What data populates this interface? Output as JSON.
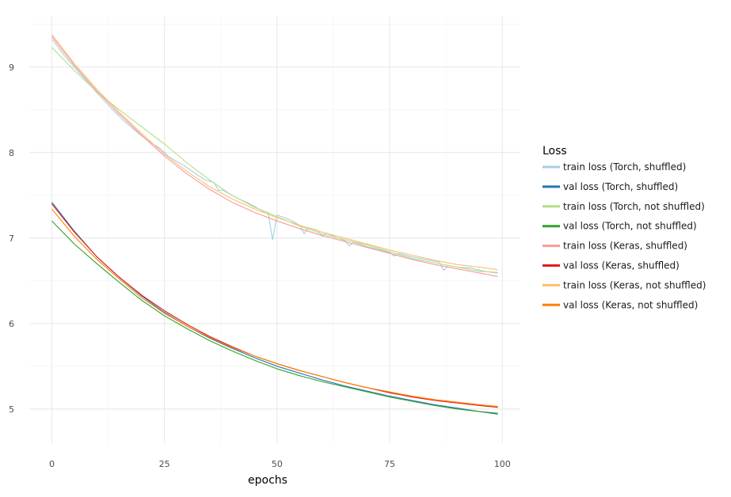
{
  "chart_data": {
    "type": "line",
    "title": "",
    "xlabel": "epochs",
    "ylabel": "",
    "xlim": [
      -5,
      104
    ],
    "ylim": [
      4.6,
      9.6
    ],
    "x_ticks": [
      0,
      25,
      50,
      75,
      100
    ],
    "y_ticks": [
      5,
      6,
      7,
      8,
      9
    ],
    "x_tick_labels": [
      "0",
      "25",
      "50",
      "75",
      "100"
    ],
    "y_tick_labels": [
      "5",
      "6",
      "7",
      "8",
      "9"
    ],
    "grid": true,
    "legend": {
      "title": "Loss",
      "placement": "right"
    },
    "x_range": [
      0,
      99
    ],
    "series": [
      {
        "name": "train loss (Torch, shuffled)",
        "color": "#a6cee3",
        "points": [
          [
            0,
            9.33
          ],
          [
            3,
            9.12
          ],
          [
            5,
            9.0
          ],
          [
            8,
            8.82
          ],
          [
            10,
            8.7
          ],
          [
            13,
            8.53
          ],
          [
            16,
            8.37
          ],
          [
            18,
            8.28
          ],
          [
            21,
            8.15
          ],
          [
            24,
            8.05
          ],
          [
            26,
            7.95
          ],
          [
            29,
            7.86
          ],
          [
            32,
            7.75
          ],
          [
            34,
            7.68
          ],
          [
            36,
            7.65
          ],
          [
            37,
            7.56
          ],
          [
            38,
            7.56
          ],
          [
            41,
            7.47
          ],
          [
            44,
            7.4
          ],
          [
            47,
            7.31
          ],
          [
            48,
            7.3
          ],
          [
            49,
            6.98
          ],
          [
            50,
            7.27
          ],
          [
            53,
            7.21
          ],
          [
            55,
            7.15
          ],
          [
            56,
            7.05
          ],
          [
            57,
            7.12
          ],
          [
            59,
            7.09
          ],
          [
            60,
            7.02
          ],
          [
            61,
            7.06
          ],
          [
            63,
            7.01
          ],
          [
            65,
            6.97
          ],
          [
            66,
            6.91
          ],
          [
            67,
            6.95
          ],
          [
            70,
            6.9
          ],
          [
            73,
            6.86
          ],
          [
            75,
            6.83
          ],
          [
            76,
            6.79
          ],
          [
            77,
            6.82
          ],
          [
            80,
            6.78
          ],
          [
            83,
            6.75
          ],
          [
            86,
            6.72
          ],
          [
            87,
            6.62
          ],
          [
            88,
            6.68
          ],
          [
            90,
            6.66
          ],
          [
            93,
            6.65
          ],
          [
            96,
            6.61
          ],
          [
            99,
            6.59
          ]
        ]
      },
      {
        "name": "val loss (Torch, shuffled)",
        "color": "#1f78b4",
        "points": [
          [
            0,
            7.42
          ],
          [
            5,
            7.08
          ],
          [
            10,
            6.78
          ],
          [
            15,
            6.54
          ],
          [
            20,
            6.32
          ],
          [
            25,
            6.13
          ],
          [
            30,
            5.97
          ],
          [
            35,
            5.83
          ],
          [
            40,
            5.71
          ],
          [
            45,
            5.6
          ],
          [
            50,
            5.5
          ],
          [
            55,
            5.42
          ],
          [
            60,
            5.34
          ],
          [
            65,
            5.27
          ],
          [
            70,
            5.21
          ],
          [
            75,
            5.15
          ],
          [
            80,
            5.1
          ],
          [
            85,
            5.05
          ],
          [
            90,
            5.01
          ],
          [
            95,
            4.97
          ],
          [
            99,
            4.94
          ]
        ]
      },
      {
        "name": "train loss (Torch, not shuffled)",
        "color": "#b2df8a",
        "points": [
          [
            0,
            9.23
          ],
          [
            5,
            8.96
          ],
          [
            10,
            8.71
          ],
          [
            15,
            8.5
          ],
          [
            20,
            8.3
          ],
          [
            25,
            8.1
          ],
          [
            30,
            7.88
          ],
          [
            35,
            7.68
          ],
          [
            40,
            7.5
          ],
          [
            45,
            7.36
          ],
          [
            50,
            7.25
          ],
          [
            55,
            7.14
          ],
          [
            60,
            7.05
          ],
          [
            65,
            6.98
          ],
          [
            70,
            6.92
          ],
          [
            75,
            6.84
          ],
          [
            80,
            6.76
          ],
          [
            85,
            6.71
          ],
          [
            90,
            6.66
          ],
          [
            95,
            6.61
          ],
          [
            99,
            6.6
          ]
        ]
      },
      {
        "name": "val loss (Torch, not shuffled)",
        "color": "#33a02c",
        "points": [
          [
            0,
            7.2
          ],
          [
            5,
            6.93
          ],
          [
            10,
            6.7
          ],
          [
            15,
            6.48
          ],
          [
            20,
            6.27
          ],
          [
            25,
            6.09
          ],
          [
            30,
            5.94
          ],
          [
            35,
            5.8
          ],
          [
            40,
            5.68
          ],
          [
            45,
            5.57
          ],
          [
            50,
            5.47
          ],
          [
            55,
            5.39
          ],
          [
            60,
            5.32
          ],
          [
            65,
            5.26
          ],
          [
            70,
            5.2
          ],
          [
            75,
            5.14
          ],
          [
            80,
            5.09
          ],
          [
            85,
            5.04
          ],
          [
            90,
            5.0
          ],
          [
            95,
            4.97
          ],
          [
            99,
            4.95
          ]
        ]
      },
      {
        "name": "train loss (Keras, shuffled)",
        "color": "#fb9a99",
        "points": [
          [
            0,
            9.36
          ],
          [
            5,
            9.02
          ],
          [
            10,
            8.72
          ],
          [
            15,
            8.45
          ],
          [
            20,
            8.2
          ],
          [
            25,
            7.96
          ],
          [
            30,
            7.75
          ],
          [
            35,
            7.57
          ],
          [
            40,
            7.42
          ],
          [
            45,
            7.3
          ],
          [
            50,
            7.2
          ],
          [
            55,
            7.11
          ],
          [
            60,
            7.03
          ],
          [
            65,
            6.96
          ],
          [
            70,
            6.89
          ],
          [
            75,
            6.82
          ],
          [
            80,
            6.75
          ],
          [
            85,
            6.69
          ],
          [
            90,
            6.64
          ],
          [
            95,
            6.59
          ],
          [
            99,
            6.55
          ]
        ]
      },
      {
        "name": "val loss (Keras, shuffled)",
        "color": "#e31a1c",
        "points": [
          [
            0,
            7.4
          ],
          [
            5,
            7.07
          ],
          [
            10,
            6.78
          ],
          [
            15,
            6.54
          ],
          [
            20,
            6.33
          ],
          [
            25,
            6.15
          ],
          [
            30,
            5.99
          ],
          [
            35,
            5.85
          ],
          [
            40,
            5.73
          ],
          [
            45,
            5.62
          ],
          [
            50,
            5.53
          ],
          [
            55,
            5.45
          ],
          [
            60,
            5.38
          ],
          [
            65,
            5.31
          ],
          [
            70,
            5.25
          ],
          [
            75,
            5.19
          ],
          [
            80,
            5.14
          ],
          [
            85,
            5.1
          ],
          [
            90,
            5.07
          ],
          [
            95,
            5.04
          ],
          [
            99,
            5.02
          ]
        ]
      },
      {
        "name": "train loss (Keras, not shuffled)",
        "color": "#fdbf6f",
        "points": [
          [
            0,
            9.38
          ],
          [
            5,
            9.04
          ],
          [
            10,
            8.74
          ],
          [
            15,
            8.47
          ],
          [
            20,
            8.22
          ],
          [
            25,
            7.98
          ],
          [
            30,
            7.78
          ],
          [
            35,
            7.6
          ],
          [
            40,
            7.46
          ],
          [
            45,
            7.34
          ],
          [
            50,
            7.24
          ],
          [
            55,
            7.15
          ],
          [
            60,
            7.07
          ],
          [
            65,
            7.0
          ],
          [
            70,
            6.93
          ],
          [
            75,
            6.86
          ],
          [
            80,
            6.8
          ],
          [
            85,
            6.74
          ],
          [
            90,
            6.69
          ],
          [
            95,
            6.66
          ],
          [
            99,
            6.63
          ]
        ]
      },
      {
        "name": "val loss (Keras, not shuffled)",
        "color": "#ff7f00",
        "points": [
          [
            0,
            7.34
          ],
          [
            5,
            7.02
          ],
          [
            10,
            6.75
          ],
          [
            15,
            6.52
          ],
          [
            20,
            6.3
          ],
          [
            25,
            6.12
          ],
          [
            30,
            5.97
          ],
          [
            35,
            5.84
          ],
          [
            40,
            5.72
          ],
          [
            45,
            5.62
          ],
          [
            50,
            5.53
          ],
          [
            55,
            5.45
          ],
          [
            60,
            5.38
          ],
          [
            65,
            5.31
          ],
          [
            70,
            5.25
          ],
          [
            75,
            5.2
          ],
          [
            80,
            5.15
          ],
          [
            85,
            5.11
          ],
          [
            90,
            5.08
          ],
          [
            95,
            5.05
          ],
          [
            99,
            5.03
          ]
        ]
      }
    ]
  }
}
